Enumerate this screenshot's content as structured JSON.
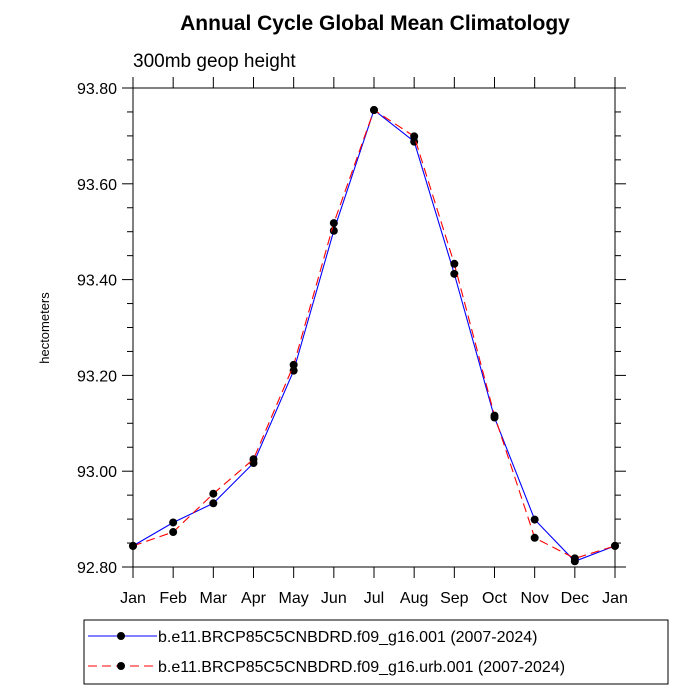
{
  "chart_data": {
    "type": "line",
    "title": "Annual Cycle Global Mean Climatology",
    "subtitle": "300mb geop height",
    "xlabel": "",
    "ylabel": "hectometers",
    "categories": [
      "Jan",
      "Feb",
      "Mar",
      "Apr",
      "May",
      "Jun",
      "Jul",
      "Aug",
      "Sep",
      "Oct",
      "Nov",
      "Dec",
      "Jan"
    ],
    "ylim": [
      92.8,
      93.8
    ],
    "yticks": [
      92.8,
      93.0,
      93.2,
      93.4,
      93.6,
      93.8
    ],
    "ytick_labels": [
      "92.80",
      "93.00",
      "93.20",
      "93.40",
      "93.60",
      "93.80"
    ],
    "grid": false,
    "legend_position": "bottom",
    "series": [
      {
        "name": "b.e11.BRCP85C5CNBDRD.f09_g16.001 (2007-2024)",
        "color": "#0000ff",
        "dash": "solid",
        "values": [
          92.844,
          92.893,
          92.933,
          93.017,
          93.21,
          93.502,
          93.754,
          93.688,
          93.412,
          93.112,
          92.899,
          92.812,
          92.844
        ]
      },
      {
        "name": "b.e11.BRCP85C5CNBDRD.f09_g16.urb.001 (2007-2024)",
        "color": "#ff0000",
        "dash": "dashed",
        "values": [
          92.844,
          92.873,
          92.953,
          93.025,
          93.222,
          93.518,
          93.754,
          93.699,
          93.433,
          93.116,
          92.861,
          92.818,
          92.844
        ]
      }
    ]
  }
}
